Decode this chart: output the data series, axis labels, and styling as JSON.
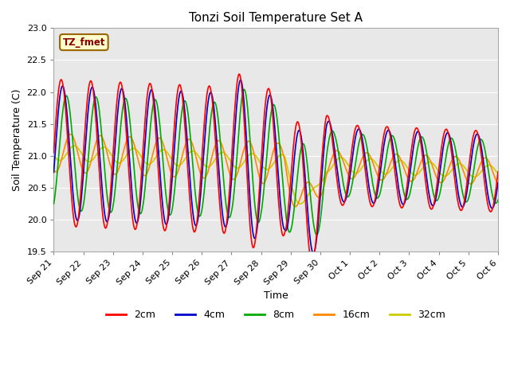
{
  "title": "Tonzi Soil Temperature Set A",
  "xlabel": "Time",
  "ylabel": "Soil Temperature (C)",
  "ylim": [
    19.5,
    23.0
  ],
  "yticks": [
    19.5,
    20.0,
    20.5,
    21.0,
    21.5,
    22.0,
    22.5,
    23.0
  ],
  "annotation": "TZ_fmet",
  "annotation_color": "#880000",
  "annotation_bg": "#ffffcc",
  "annotation_border": "#996600",
  "fig_bg": "#ffffff",
  "plot_bg": "#e8e8e8",
  "line_colors": {
    "2cm": "#ff0000",
    "4cm": "#0000cc",
    "8cm": "#00aa00",
    "16cm": "#ff8800",
    "32cm": "#cccc00"
  },
  "legend_labels": [
    "2cm",
    "4cm",
    "8cm",
    "16cm",
    "32cm"
  ],
  "xtick_labels": [
    "Sep 21",
    "Sep 22",
    "Sep 23",
    "Sep 24",
    "Sep 25",
    "Sep 26",
    "Sep 27",
    "Sep 28",
    "Sep 29",
    "Sep 30",
    "Oct 1",
    "Oct 2",
    "Oct 3",
    "Oct 4",
    "Oct 5",
    "Oct 6"
  ],
  "duration_days": 15,
  "n_points": 721
}
